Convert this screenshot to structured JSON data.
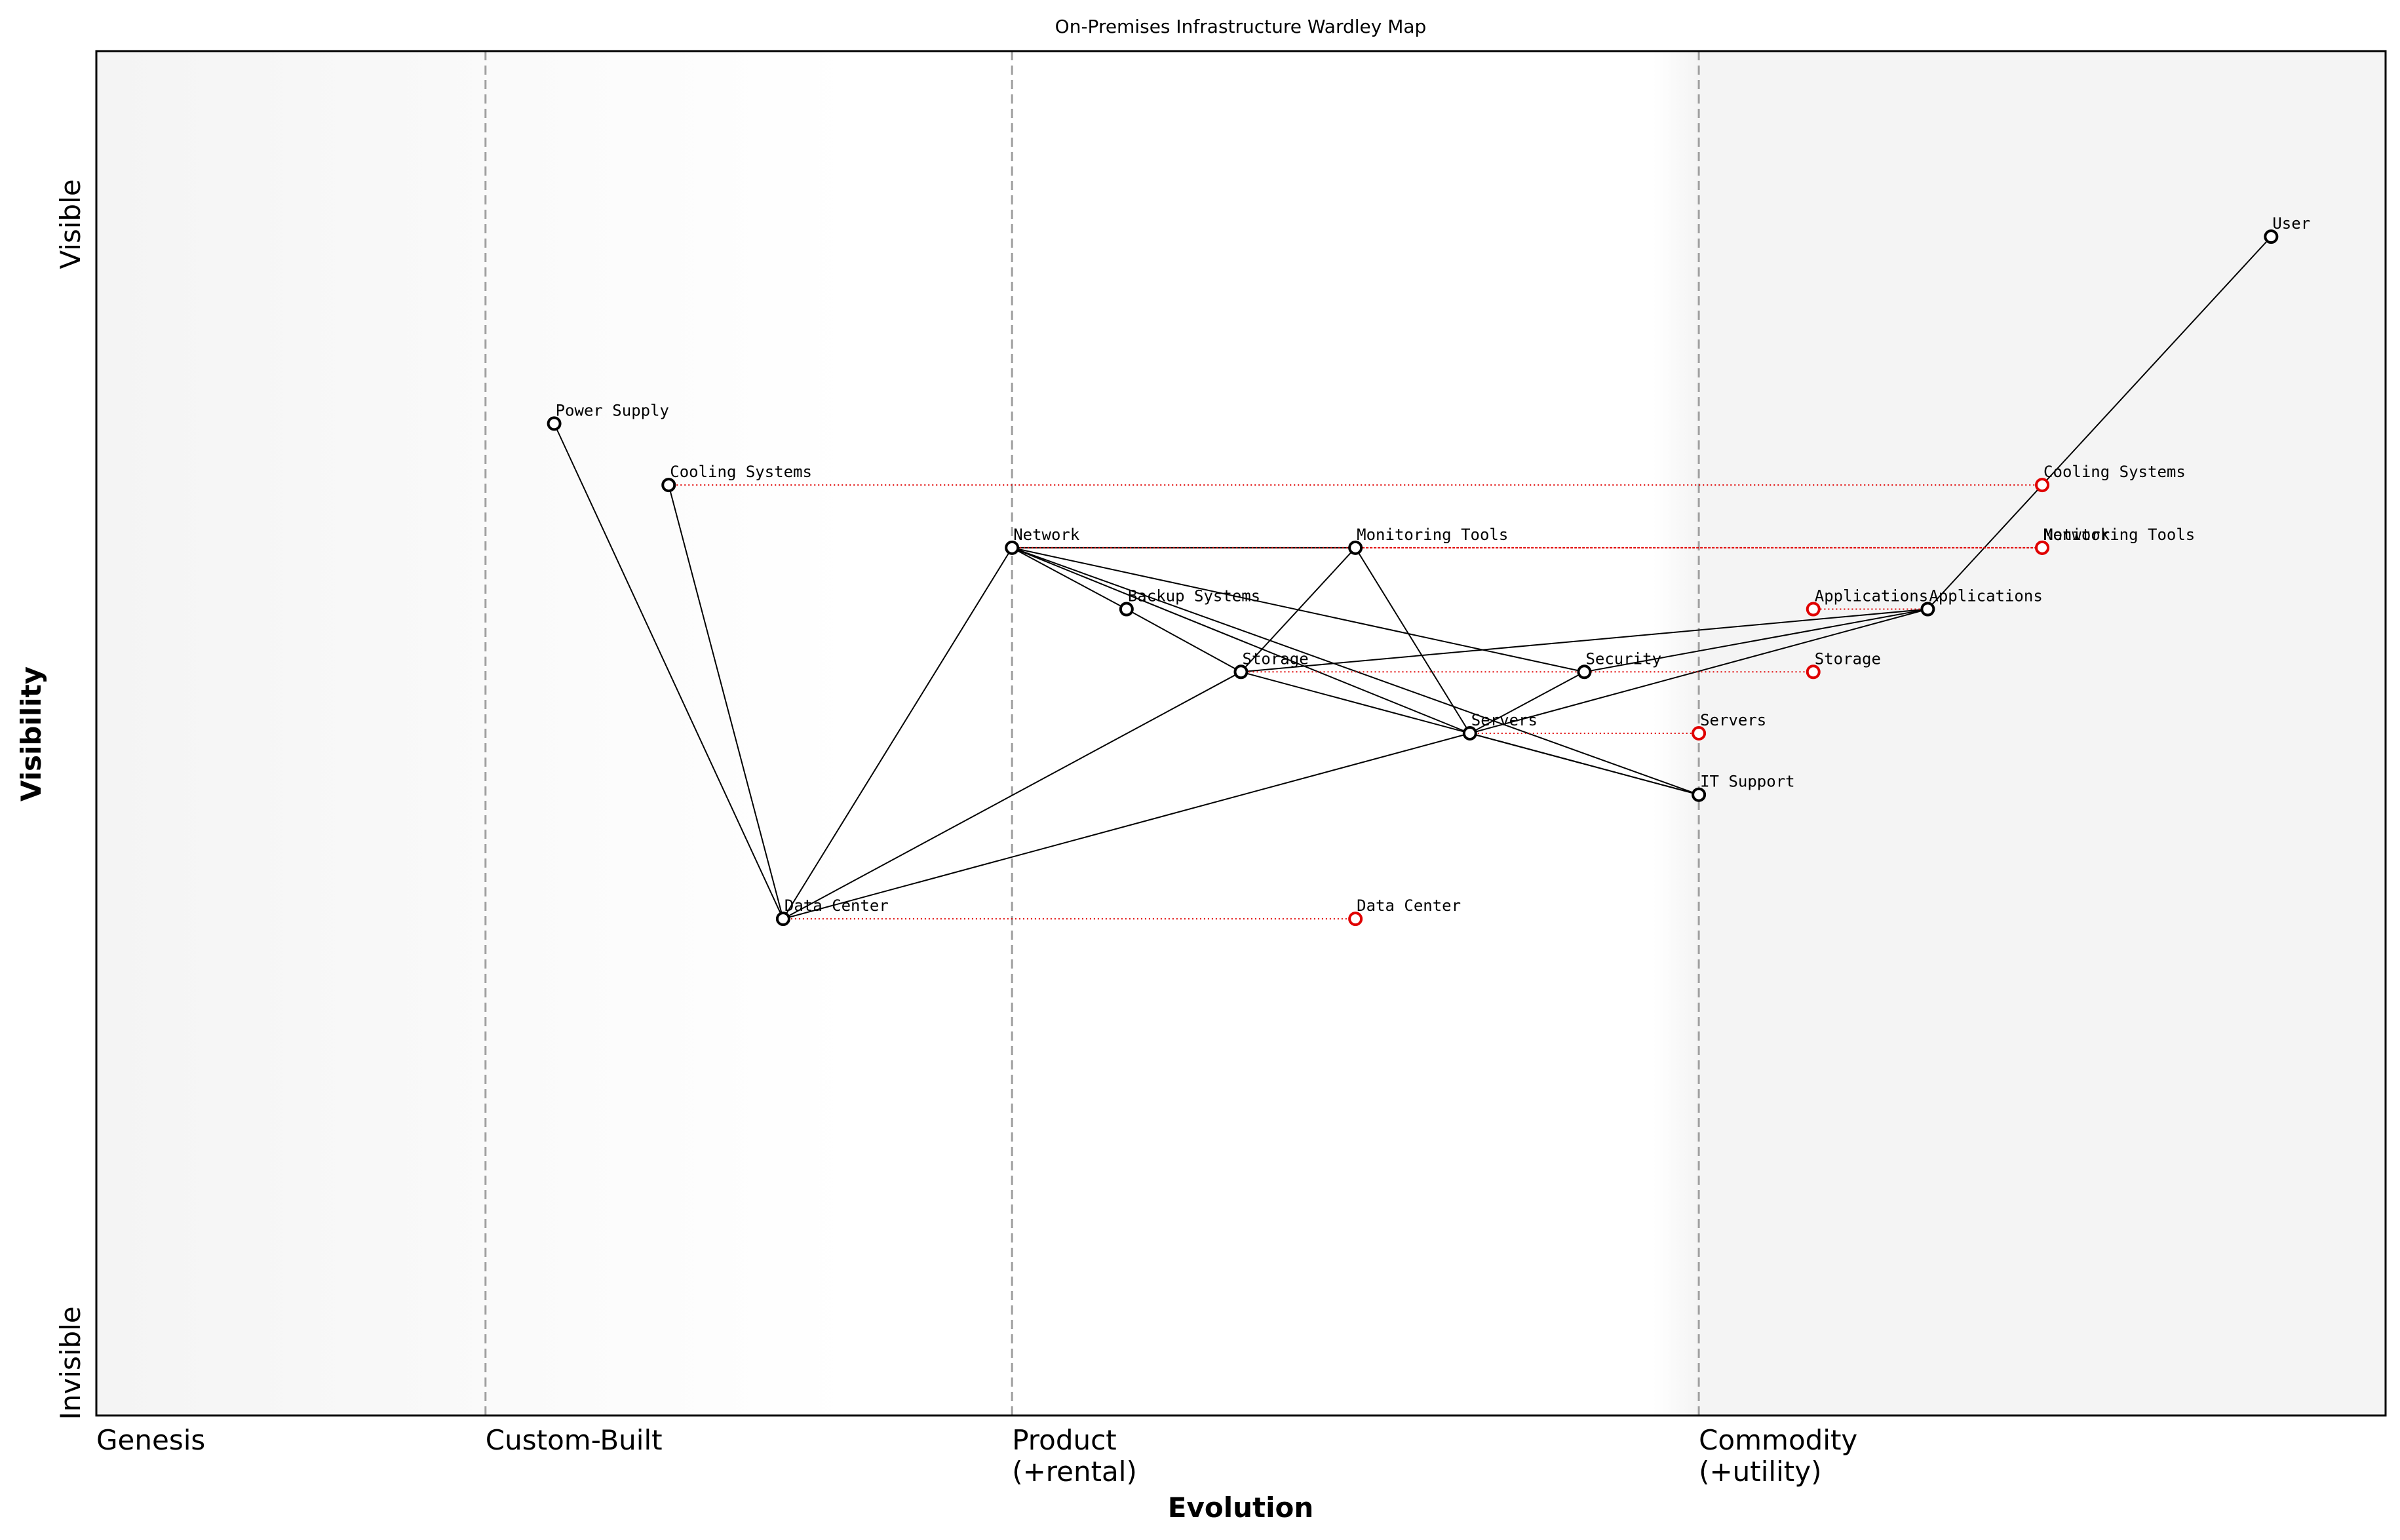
{
  "title": "On-Premises Infrastructure Wardley Map",
  "x_axis": {
    "title": "Evolution",
    "stages": [
      {
        "label": "Genesis",
        "position": 0.0
      },
      {
        "label": "Custom-Built",
        "position": 0.17
      },
      {
        "label": "Product\n(+rental)",
        "position": 0.4
      },
      {
        "label": "Commodity\n(+utility)",
        "position": 0.7
      }
    ]
  },
  "y_axis": {
    "title": "Visibility",
    "top_label": "Visible",
    "bottom_label": "Invisible"
  },
  "components": [
    {
      "id": "user",
      "name": "User",
      "evolution": 0.95,
      "visibility": 0.864
    },
    {
      "id": "power",
      "name": "Power Supply",
      "evolution": 0.2,
      "visibility": 0.727
    },
    {
      "id": "cooling",
      "name": "Cooling Systems",
      "evolution": 0.25,
      "visibility": 0.682
    },
    {
      "id": "network",
      "name": "Network",
      "evolution": 0.4,
      "visibility": 0.636
    },
    {
      "id": "monitoring",
      "name": "Monitoring Tools",
      "evolution": 0.55,
      "visibility": 0.636
    },
    {
      "id": "backup",
      "name": "Backup Systems",
      "evolution": 0.45,
      "visibility": 0.591
    },
    {
      "id": "applications",
      "name": "Applications",
      "evolution": 0.8,
      "visibility": 0.591
    },
    {
      "id": "storage",
      "name": "Storage",
      "evolution": 0.5,
      "visibility": 0.545
    },
    {
      "id": "security",
      "name": "Security",
      "evolution": 0.65,
      "visibility": 0.545
    },
    {
      "id": "servers",
      "name": "Servers",
      "evolution": 0.6,
      "visibility": 0.5
    },
    {
      "id": "itsupport",
      "name": "IT Support",
      "evolution": 0.7,
      "visibility": 0.455
    },
    {
      "id": "datacenter",
      "name": "Data Center",
      "evolution": 0.3,
      "visibility": 0.364
    }
  ],
  "dependencies": [
    [
      "user",
      "applications"
    ],
    [
      "applications",
      "storage"
    ],
    [
      "applications",
      "servers"
    ],
    [
      "applications",
      "security"
    ],
    [
      "network",
      "monitoring"
    ],
    [
      "network",
      "backup"
    ],
    [
      "network",
      "security"
    ],
    [
      "network",
      "servers"
    ],
    [
      "network",
      "itsupport"
    ],
    [
      "backup",
      "storage"
    ],
    [
      "storage",
      "monitoring"
    ],
    [
      "storage",
      "itsupport"
    ],
    [
      "storage",
      "datacenter"
    ],
    [
      "monitoring",
      "servers"
    ],
    [
      "security",
      "servers"
    ],
    [
      "servers",
      "itsupport"
    ],
    [
      "servers",
      "datacenter"
    ],
    [
      "network",
      "datacenter"
    ],
    [
      "power",
      "datacenter"
    ],
    [
      "cooling",
      "datacenter"
    ]
  ],
  "evolutions": [
    {
      "from": "cooling",
      "name": "Cooling Systems",
      "evolution": 0.85
    },
    {
      "from": "network",
      "name": "Network",
      "evolution": 0.85
    },
    {
      "from": "monitoring",
      "name": "Monitoring Tools",
      "evolution": 0.85
    },
    {
      "from": "applications",
      "name": "Applications",
      "evolution": 0.75
    },
    {
      "from": "storage",
      "name": "Storage",
      "evolution": 0.75
    },
    {
      "from": "servers",
      "name": "Servers",
      "evolution": 0.7
    },
    {
      "from": "datacenter",
      "name": "Data Center",
      "evolution": 0.55
    }
  ],
  "colors": {
    "component_stroke": "#000000",
    "evolution_stroke": "#e00000",
    "stage_divider": "#a0a0a0",
    "band_light": "#f4f4f4",
    "band_white": "#ffffff"
  }
}
